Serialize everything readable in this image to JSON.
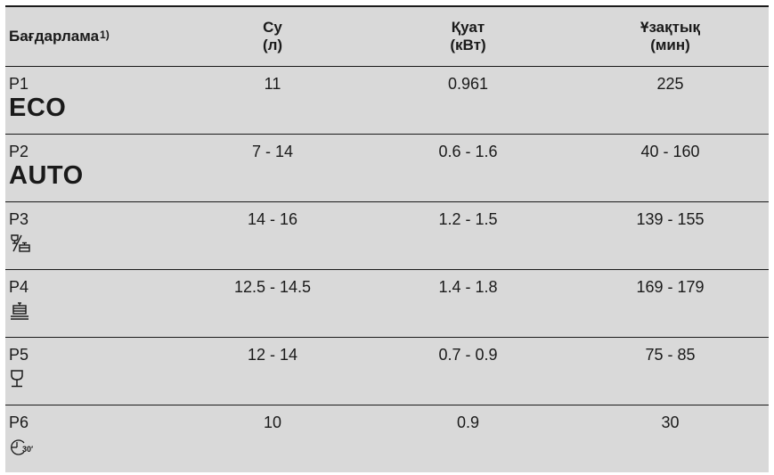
{
  "header": {
    "program": "Бағдарлама",
    "program_note": "1)",
    "water_line1": "Су",
    "water_line2": "(л)",
    "energy_line1": "Қуат",
    "energy_line2": "(кВт)",
    "duration_line1": "Ұзақтық",
    "duration_line2": "(мин)"
  },
  "rows": [
    {
      "program": "P1",
      "label": "ECO",
      "icon": "",
      "water": "11",
      "energy": "0.961",
      "duration": "225"
    },
    {
      "program": "P2",
      "label": "AUTO",
      "icon": "",
      "water": "7 - 14",
      "energy": "0.6 - 1.6",
      "duration": "40 - 160"
    },
    {
      "program": "P3",
      "label": "",
      "icon": "glass-and-pot-icon",
      "water": "14 - 16",
      "energy": "1.2 - 1.5",
      "duration": "139 - 155"
    },
    {
      "program": "P4",
      "label": "",
      "icon": "pot-steam-icon",
      "water": "12.5 - 14.5",
      "energy": "1.4 - 1.8",
      "duration": "169 - 179"
    },
    {
      "program": "P5",
      "label": "",
      "icon": "wine-glass-icon",
      "water": "12 - 14",
      "energy": "0.7 - 0.9",
      "duration": "75 - 85"
    },
    {
      "program": "P6",
      "label": "",
      "icon": "timer-30-icon",
      "water": "10",
      "energy": "0.9",
      "duration": "30"
    }
  ]
}
